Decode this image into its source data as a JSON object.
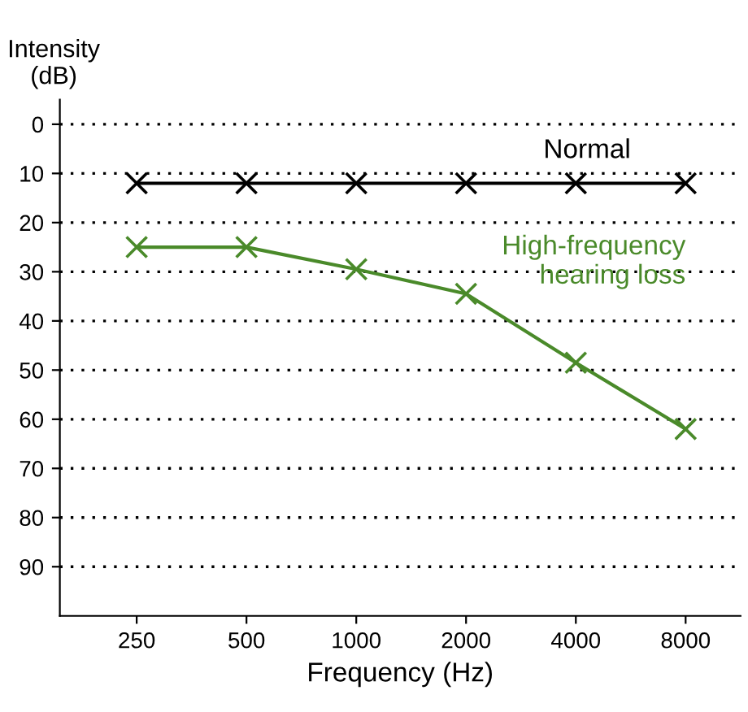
{
  "chart_data": {
    "type": "line",
    "xlabel": "Frequency (Hz)",
    "ylabel": "Intensity\n(dB)",
    "categories": [
      "250",
      "500",
      "1000",
      "2000",
      "4000",
      "8000"
    ],
    "series": [
      {
        "name": "Normal",
        "color": "#000000",
        "values": [
          12,
          12,
          12,
          12,
          12,
          12
        ]
      },
      {
        "name": "High-frequency\nhearing loss",
        "color": "#4a8a2a",
        "values": [
          25,
          25,
          29.5,
          34.5,
          48.5,
          62
        ]
      }
    ],
    "ylim": [
      100,
      -5
    ],
    "yticks": [
      0,
      10,
      20,
      30,
      40,
      50,
      60,
      70,
      80,
      90
    ],
    "grid": "y",
    "legend": false,
    "marker": "cross",
    "line_style": "solid"
  }
}
